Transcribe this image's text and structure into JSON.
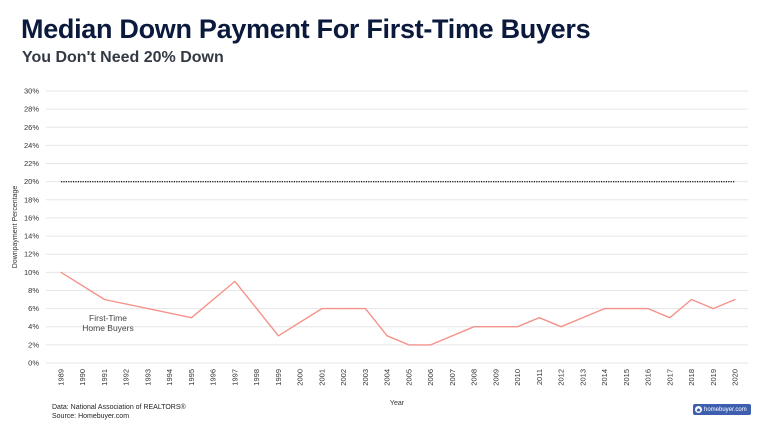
{
  "title": "Median Down Payment For First-Time Buyers",
  "subtitle": "You Don't Need 20% Down",
  "source_lines": [
    "Data: National Association of REALTORS®",
    "Source: Homebuyer.com"
  ],
  "brand": {
    "label": "homebuyer.com",
    "icon": "house-icon",
    "color": "#3e5fb0"
  },
  "colors": {
    "series": "#f4938a",
    "reference": "#222222",
    "grid": "#e6e6e6",
    "title": "#0b1a3c"
  },
  "chart_data": {
    "type": "line",
    "xlabel": "Year",
    "ylabel": "Downpayment Percentage",
    "ylim": [
      0,
      30
    ],
    "y_ticks": [
      "0%",
      "2%",
      "4%",
      "6%",
      "8%",
      "10%",
      "12%",
      "14%",
      "16%",
      "18%",
      "20%",
      "22%",
      "24%",
      "26%",
      "28%",
      "30%"
    ],
    "x": [
      "1989",
      "1990",
      "1991",
      "1992",
      "1993",
      "1994",
      "1995",
      "1996",
      "1997",
      "1998",
      "1999",
      "2000",
      "2001",
      "2002",
      "2003",
      "2004",
      "2005",
      "2006",
      "2007",
      "2008",
      "2009",
      "2010",
      "2011",
      "2012",
      "2013",
      "2014",
      "2015",
      "2016",
      "2017",
      "2018",
      "2019",
      "2020"
    ],
    "grid": true,
    "legend": "none",
    "series": [
      {
        "name": "First-Time Home Buyers",
        "label_lines": [
          "First-Time",
          "Home Buyers"
        ],
        "style": "solid",
        "points": [
          {
            "x": "1989",
            "y": 10
          },
          {
            "x": "1991",
            "y": 7
          },
          {
            "x": "1995",
            "y": 5
          },
          {
            "x": "1997",
            "y": 9
          },
          {
            "x": "1999",
            "y": 3
          },
          {
            "x": "2001",
            "y": 6
          },
          {
            "x": "2002",
            "y": 6
          },
          {
            "x": "2003",
            "y": 6
          },
          {
            "x": "2004",
            "y": 3
          },
          {
            "x": "2005",
            "y": 2
          },
          {
            "x": "2006",
            "y": 2
          },
          {
            "x": "2008",
            "y": 4
          },
          {
            "x": "2009",
            "y": 4
          },
          {
            "x": "2010",
            "y": 4
          },
          {
            "x": "2011",
            "y": 5
          },
          {
            "x": "2012",
            "y": 4
          },
          {
            "x": "2014",
            "y": 6
          },
          {
            "x": "2015",
            "y": 6
          },
          {
            "x": "2016",
            "y": 6
          },
          {
            "x": "2017",
            "y": 5
          },
          {
            "x": "2018",
            "y": 7
          },
          {
            "x": "2019",
            "y": 6
          },
          {
            "x": "2020",
            "y": 7
          }
        ]
      },
      {
        "name": "",
        "style": "dotted",
        "points": [
          {
            "x": "1989",
            "y": 20
          },
          {
            "x": "2020",
            "y": 20
          }
        ]
      }
    ]
  }
}
